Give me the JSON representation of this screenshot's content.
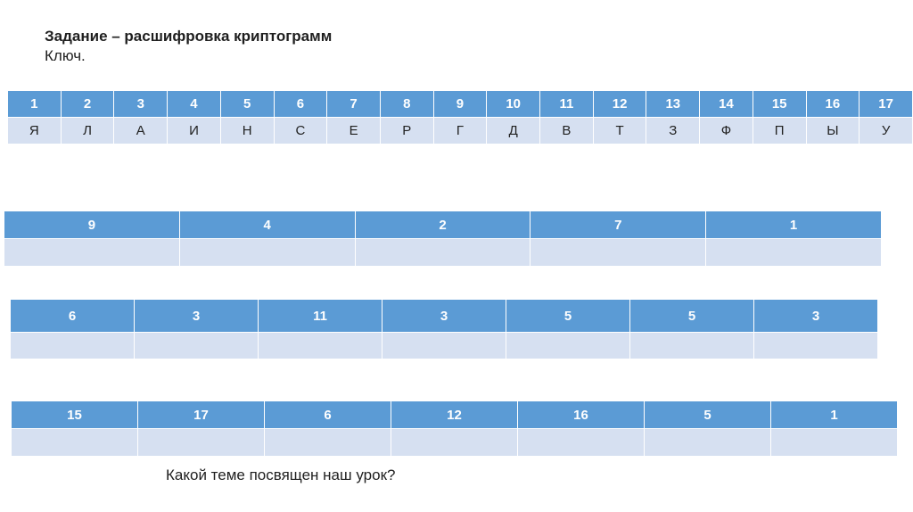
{
  "title": "Задание – расшифровка криптограмм",
  "subtitle": "Ключ.",
  "key_table": {
    "numbers": [
      "1",
      "2",
      "3",
      "4",
      "5",
      "6",
      "7",
      "8",
      "9",
      "10",
      "11",
      "12",
      "13",
      "14",
      "15",
      "16",
      "17"
    ],
    "letters": [
      "Я",
      "Л",
      "А",
      "И",
      "Н",
      "С",
      "Е",
      "Р",
      "Г",
      "Д",
      "В",
      "Т",
      "З",
      "Ф",
      "П",
      "Ы",
      "У"
    ]
  },
  "cipher_tables": [
    {
      "numbers": [
        "9",
        "4",
        "2",
        "7",
        "1"
      ]
    },
    {
      "numbers": [
        "6",
        "3",
        "11",
        "3",
        "5",
        "5",
        "3"
      ]
    },
    {
      "numbers": [
        "15",
        "17",
        "6",
        "12",
        "16",
        "5",
        "1"
      ]
    }
  ],
  "question": "Какой теме посвящен наш урок?",
  "colors": {
    "header_fill": "#5b9bd5",
    "body_fill": "#d6e0f1"
  }
}
